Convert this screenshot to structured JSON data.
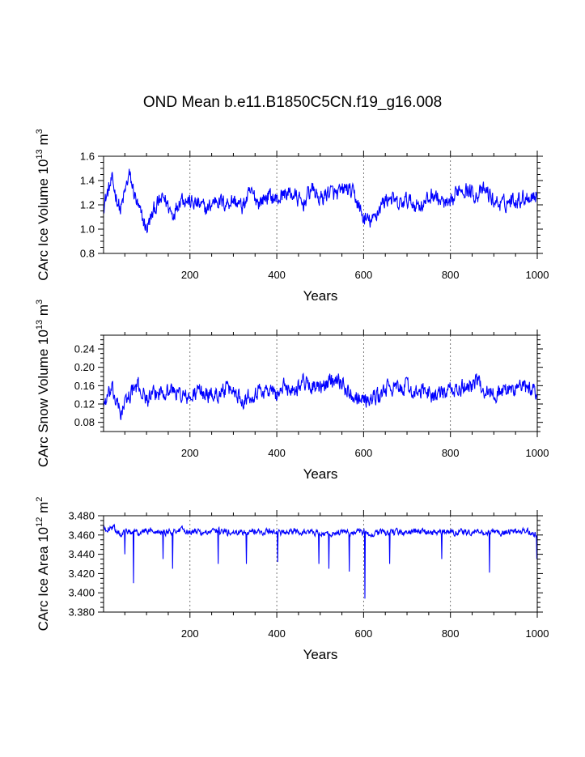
{
  "title": "OND Mean b.e11.B1850C5CN.f19_g16.008",
  "line_color": "#0000ff",
  "chart_data": [
    {
      "type": "line",
      "ylabel": "CArc Ice Volume 10",
      "ylabel_exp": "13",
      "ylabel_unit": " m",
      "ylabel_unit_exp": "3",
      "xlabel": "Years",
      "xlim": [
        1,
        1000
      ],
      "ylim": [
        0.8,
        1.6
      ],
      "xticks": [
        200,
        400,
        600,
        800,
        1000
      ],
      "xtick_labels": [
        "200",
        "400",
        "600",
        "800",
        "1000"
      ],
      "yticks": [
        0.8,
        1.0,
        1.2,
        1.4,
        1.6
      ],
      "ytick_labels": [
        "0.8",
        "1.0",
        "1.2",
        "1.4",
        "1.6"
      ],
      "minor_ystep": 0.05,
      "grid_x": [
        200,
        400,
        600,
        800
      ],
      "series": [
        {
          "name": "CArc Ice Volume",
          "x": [
            1,
            20,
            40,
            60,
            80,
            100,
            120,
            140,
            160,
            180,
            200,
            220,
            240,
            260,
            280,
            300,
            320,
            340,
            360,
            380,
            400,
            420,
            440,
            460,
            480,
            500,
            520,
            540,
            560,
            580,
            600,
            620,
            640,
            660,
            680,
            700,
            720,
            740,
            760,
            780,
            800,
            820,
            840,
            860,
            880,
            900,
            920,
            940,
            960,
            980,
            1000
          ],
          "values": [
            1.2,
            1.4,
            1.15,
            1.45,
            1.18,
            1.0,
            1.18,
            1.26,
            1.12,
            1.27,
            1.22,
            1.2,
            1.16,
            1.25,
            1.21,
            1.24,
            1.18,
            1.3,
            1.22,
            1.28,
            1.24,
            1.3,
            1.28,
            1.2,
            1.34,
            1.24,
            1.31,
            1.28,
            1.34,
            1.27,
            1.08,
            1.06,
            1.2,
            1.27,
            1.19,
            1.24,
            1.2,
            1.21,
            1.29,
            1.22,
            1.18,
            1.35,
            1.32,
            1.28,
            1.32,
            1.23,
            1.2,
            1.24,
            1.25,
            1.27,
            1.28
          ]
        }
      ]
    },
    {
      "type": "line",
      "ylabel": "CArc Snow Volume 10",
      "ylabel_exp": "13",
      "ylabel_unit": " m",
      "ylabel_unit_exp": "3",
      "xlabel": "Years",
      "xlim": [
        1,
        1000
      ],
      "ylim": [
        0.06,
        0.27
      ],
      "xticks": [
        200,
        400,
        600,
        800,
        1000
      ],
      "xtick_labels": [
        "200",
        "400",
        "600",
        "800",
        "1000"
      ],
      "yticks": [
        0.08,
        0.12,
        0.16,
        0.2,
        0.24
      ],
      "ytick_labels": [
        "0.08",
        "0.12",
        "0.16",
        "0.20",
        "0.24"
      ],
      "minor_ystep": 0.01,
      "grid_x": [
        200,
        400,
        600,
        800
      ],
      "series": [
        {
          "name": "CArc Snow Volume",
          "x": [
            1,
            20,
            40,
            60,
            80,
            100,
            120,
            140,
            160,
            180,
            200,
            220,
            240,
            260,
            280,
            300,
            320,
            340,
            360,
            380,
            400,
            420,
            440,
            460,
            480,
            500,
            520,
            540,
            560,
            580,
            600,
            620,
            640,
            660,
            680,
            700,
            720,
            740,
            760,
            780,
            800,
            820,
            840,
            860,
            880,
            900,
            920,
            940,
            960,
            980,
            1000
          ],
          "values": [
            0.12,
            0.15,
            0.1,
            0.14,
            0.16,
            0.13,
            0.14,
            0.15,
            0.15,
            0.14,
            0.13,
            0.15,
            0.14,
            0.14,
            0.15,
            0.15,
            0.13,
            0.14,
            0.15,
            0.15,
            0.14,
            0.16,
            0.15,
            0.17,
            0.16,
            0.15,
            0.17,
            0.18,
            0.15,
            0.14,
            0.13,
            0.13,
            0.14,
            0.16,
            0.15,
            0.16,
            0.14,
            0.15,
            0.14,
            0.14,
            0.15,
            0.15,
            0.16,
            0.17,
            0.15,
            0.14,
            0.15,
            0.15,
            0.16,
            0.15,
            0.15
          ]
        }
      ]
    },
    {
      "type": "line",
      "ylabel": "CArc Ice Area 10",
      "ylabel_exp": "12",
      "ylabel_unit": " m",
      "ylabel_unit_exp": "2",
      "xlabel": "Years",
      "xlim": [
        1,
        1000
      ],
      "ylim": [
        3.38,
        3.48
      ],
      "xticks": [
        200,
        400,
        600,
        800,
        1000
      ],
      "xtick_labels": [
        "200",
        "400",
        "600",
        "800",
        "1000"
      ],
      "yticks": [
        3.38,
        3.4,
        3.42,
        3.44,
        3.46,
        3.48
      ],
      "ytick_labels": [
        "3.380",
        "3.400",
        "3.420",
        "3.440",
        "3.460",
        "3.480"
      ],
      "minor_ystep": 0.005,
      "grid_x": [
        200,
        400,
        600,
        800
      ],
      "series": [
        {
          "name": "CArc Ice Area",
          "x": [
            1,
            20,
            40,
            60,
            80,
            100,
            120,
            140,
            160,
            180,
            200,
            220,
            240,
            260,
            280,
            300,
            320,
            340,
            360,
            380,
            400,
            420,
            440,
            460,
            480,
            500,
            520,
            540,
            560,
            580,
            600,
            620,
            640,
            660,
            680,
            700,
            720,
            740,
            760,
            780,
            800,
            820,
            840,
            860,
            880,
            900,
            920,
            940,
            960,
            980,
            1000
          ],
          "values": [
            3.466,
            3.468,
            3.462,
            3.464,
            3.463,
            3.464,
            3.465,
            3.463,
            3.464,
            3.465,
            3.464,
            3.463,
            3.462,
            3.464,
            3.463,
            3.462,
            3.463,
            3.464,
            3.463,
            3.464,
            3.463,
            3.462,
            3.464,
            3.463,
            3.463,
            3.462,
            3.461,
            3.463,
            3.462,
            3.463,
            3.462,
            3.461,
            3.463,
            3.462,
            3.463,
            3.462,
            3.464,
            3.463,
            3.462,
            3.463,
            3.463,
            3.463,
            3.462,
            3.464,
            3.462,
            3.463,
            3.462,
            3.464,
            3.463,
            3.464,
            3.46
          ],
          "dips": [
            {
              "x": 70,
              "value": 3.41
            },
            {
              "x": 50,
              "value": 3.44
            },
            {
              "x": 138,
              "value": 3.435
            },
            {
              "x": 160,
              "value": 3.425
            },
            {
              "x": 265,
              "value": 3.43
            },
            {
              "x": 330,
              "value": 3.43
            },
            {
              "x": 402,
              "value": 3.432
            },
            {
              "x": 497,
              "value": 3.43
            },
            {
              "x": 520,
              "value": 3.425
            },
            {
              "x": 567,
              "value": 3.422
            },
            {
              "x": 603,
              "value": 3.394
            },
            {
              "x": 660,
              "value": 3.43
            },
            {
              "x": 780,
              "value": 3.435
            },
            {
              "x": 890,
              "value": 3.421
            },
            {
              "x": 999,
              "value": 3.435
            }
          ]
        }
      ]
    }
  ]
}
